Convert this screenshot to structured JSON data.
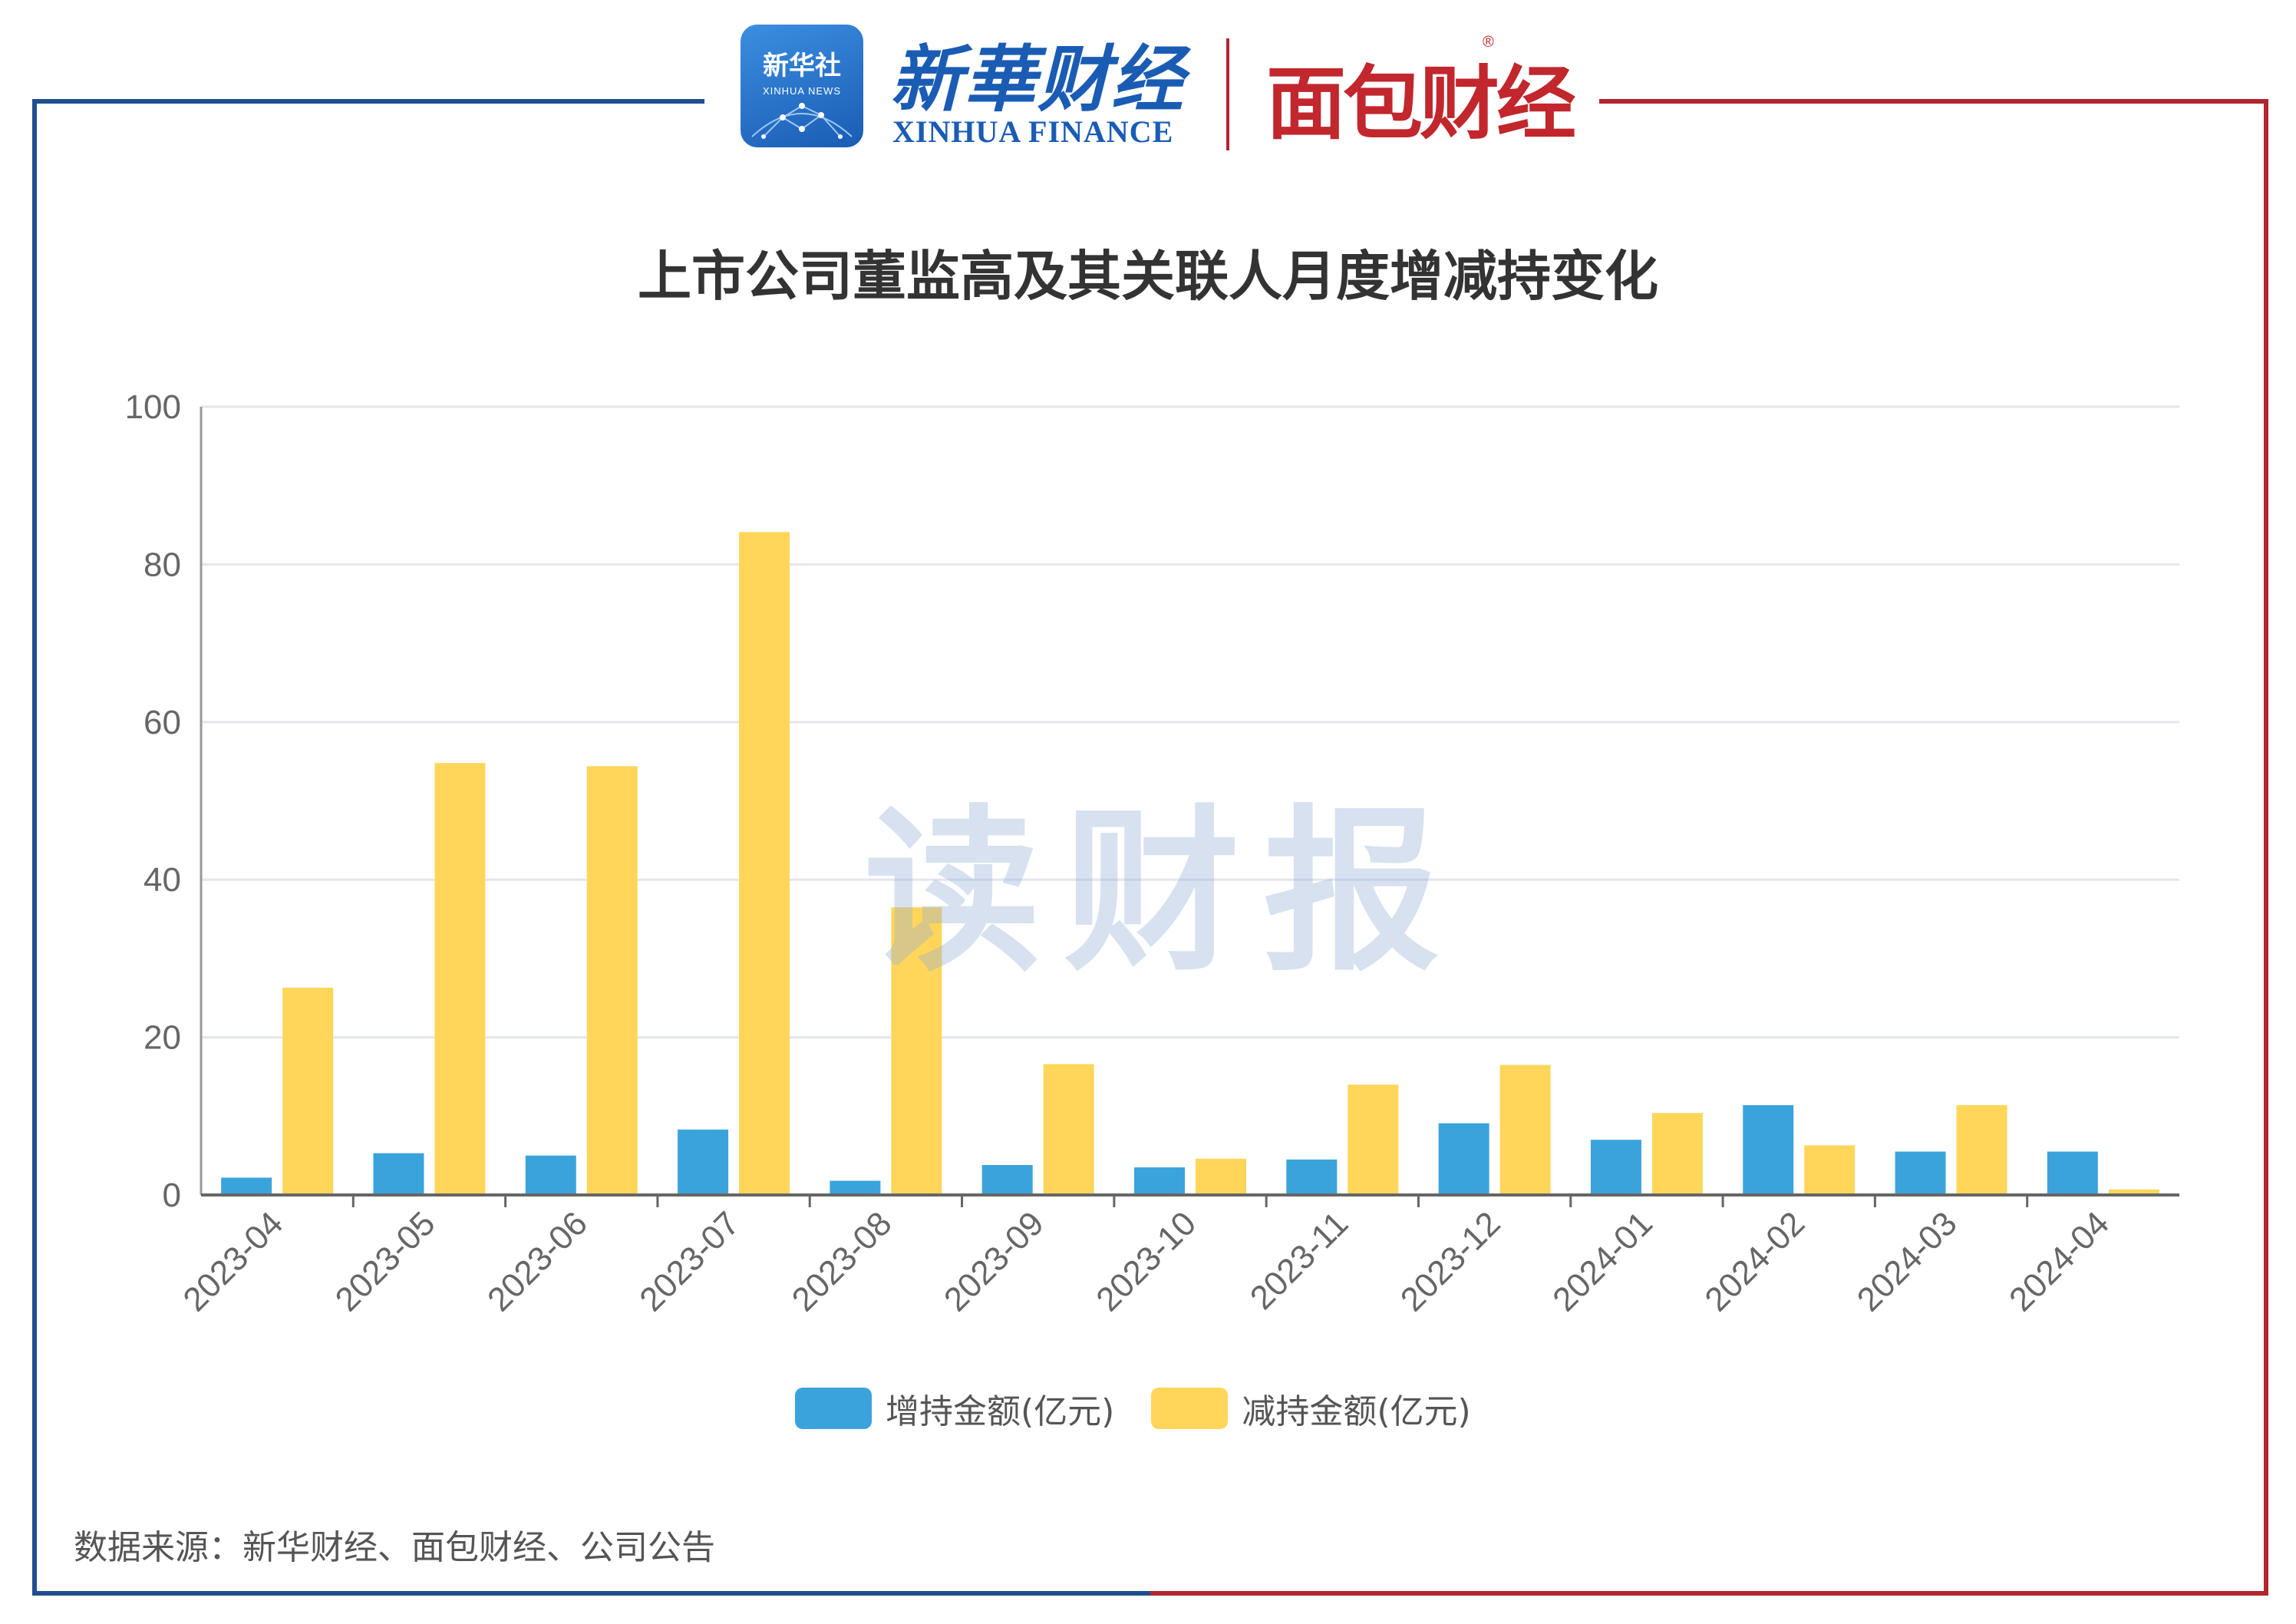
{
  "header": {
    "xinhua_badge_cn": "新华社",
    "xinhua_badge_en": "XINHUA NEWS",
    "xinhua_finance_cn": "新華财经",
    "xinhua_finance_en": "XINHUA FINANCE",
    "mianbao_logo": "面包财经",
    "registered_mark": "®"
  },
  "watermark": "读财报",
  "source_note": "数据来源：新华财经、面包财经、公司公告",
  "colors": {
    "increase": "#3aa3dc",
    "decrease": "#ffd65a",
    "frame_left": "#1f4f8f",
    "frame_right": "#b2262f"
  },
  "chart_data": {
    "type": "bar",
    "title": "上市公司董监高及其关联人月度增减持变化",
    "xlabel": "",
    "ylabel": "",
    "ylim": [
      0,
      100
    ],
    "yticks": [
      0,
      20,
      40,
      60,
      80,
      100
    ],
    "grid": true,
    "legend_position": "bottom",
    "categories": [
      "2023-04",
      "2023-05",
      "2023-06",
      "2023-07",
      "2023-08",
      "2023-09",
      "2023-10",
      "2023-11",
      "2023-12",
      "2024-01",
      "2024-02",
      "2024-03",
      "2024-04"
    ],
    "series": [
      {
        "name": "增持金额(亿元)",
        "color": "#3aa3dc",
        "values": [
          2.2,
          5.3,
          5.0,
          8.3,
          1.8,
          3.8,
          3.5,
          4.5,
          9.1,
          7.0,
          11.4,
          5.5,
          5.5
        ]
      },
      {
        "name": "减持金额(亿元)",
        "color": "#ffd65a",
        "values": [
          26.3,
          54.8,
          54.4,
          84.1,
          36.5,
          16.6,
          4.6,
          14.0,
          16.5,
          10.4,
          6.3,
          11.4,
          0.7
        ]
      }
    ]
  }
}
